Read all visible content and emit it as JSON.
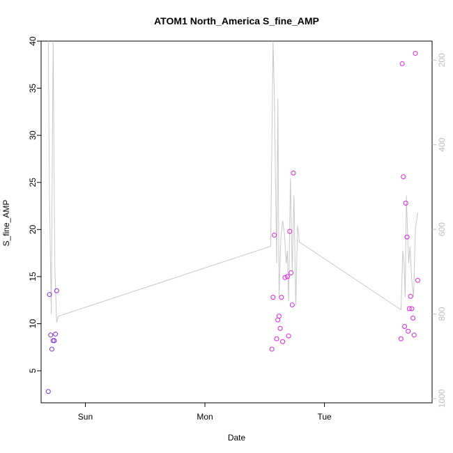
{
  "chart_data": {
    "type": "scatter",
    "title": "ATOM1 North_America S_fine_AMP",
    "xlabel": "Date",
    "ylabel": "S_fine_AMP",
    "x_tick_labels": [
      "Sun",
      "Mon",
      "Tue"
    ],
    "x_tick_values": [
      1,
      2,
      3
    ],
    "xlim": [
      0.63,
      3.9
    ],
    "ylim": [
      1.6,
      40.0
    ],
    "y_ticks": [
      5,
      10,
      15,
      20,
      25,
      30,
      35,
      40
    ],
    "y2_ticks": [
      200,
      400,
      600,
      800,
      1000
    ],
    "y2lim": [
      1010,
      155
    ],
    "grid": false,
    "colors": {
      "points_early": "#7b2fd6",
      "points_late": "#e020e0",
      "line": "#c8c8c8",
      "axis": "#000000",
      "right_axis": "#bdbdbd"
    },
    "series": [
      {
        "type": "points",
        "color_key": "points_early",
        "x": [
          0.69,
          0.7,
          0.71,
          0.72,
          0.73,
          0.74,
          0.75,
          0.76
        ],
        "y": [
          2.8,
          13.1,
          8.8,
          7.3,
          8.2,
          8.2,
          8.9,
          13.5
        ]
      },
      {
        "type": "points",
        "color_key": "points_late",
        "x": [
          2.56,
          2.57,
          2.58,
          2.6,
          2.61,
          2.62,
          2.63,
          2.64,
          2.65,
          2.67,
          2.69,
          2.7,
          2.71,
          2.72,
          2.73,
          2.74,
          3.64,
          3.65,
          3.66,
          3.67,
          3.68,
          3.69,
          3.7,
          3.71,
          3.72,
          3.73,
          3.74,
          3.75,
          3.76,
          3.78
        ],
        "y": [
          7.3,
          12.8,
          19.4,
          8.4,
          10.4,
          10.8,
          9.5,
          12.8,
          8.1,
          14.9,
          15.0,
          8.7,
          19.8,
          15.4,
          12.0,
          26.0,
          8.4,
          37.6,
          25.6,
          9.7,
          22.8,
          19.2,
          9.2,
          11.6,
          12.9,
          11.6,
          10.6,
          8.8,
          38.7,
          14.6
        ]
      },
      {
        "type": "line",
        "color_key": "line",
        "axis": "right",
        "x": [
          0.69,
          0.7,
          0.715,
          0.73,
          0.745,
          0.76,
          0.775,
          2.55,
          2.57,
          2.58,
          2.6,
          2.61,
          2.62,
          2.635,
          2.65,
          2.665,
          2.68,
          2.69,
          2.7,
          2.715,
          2.73,
          2.745,
          2.76,
          2.775,
          2.79,
          3.64,
          3.655,
          3.665,
          3.675,
          3.685,
          3.695,
          3.705,
          3.715,
          3.73,
          3.745,
          3.76,
          3.78
        ],
        "y": [
          155,
          520,
          800,
          155,
          690,
          820,
          805,
          640,
          155,
          270,
          680,
          290,
          760,
          620,
          580,
          610,
          680,
          650,
          770,
          480,
          700,
          520,
          780,
          590,
          630,
          790,
          650,
          680,
          760,
          520,
          610,
          680,
          640,
          720,
          760,
          600,
          560
        ]
      }
    ]
  }
}
